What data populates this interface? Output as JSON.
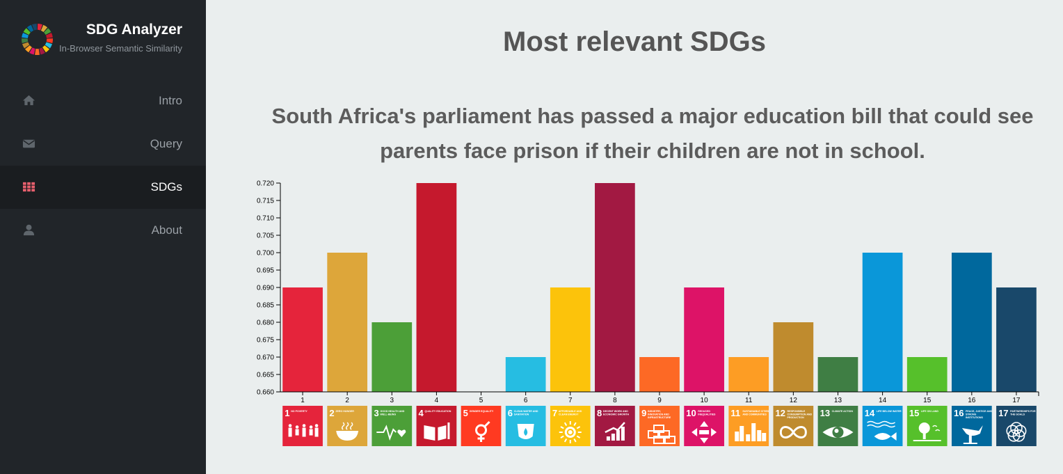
{
  "sidebar": {
    "title": "SDG Analyzer",
    "subtitle": "In-Browser Semantic Similarity",
    "items": [
      {
        "label": "Intro",
        "icon": "home-icon",
        "active": false
      },
      {
        "label": "Query",
        "icon": "envelope-icon",
        "active": false
      },
      {
        "label": "SDGs",
        "icon": "grid-icon",
        "active": true
      },
      {
        "label": "About",
        "icon": "user-icon",
        "active": false
      }
    ],
    "colors": {
      "background": "#212529",
      "active": "#1a1d20",
      "text": "#9aa0a6",
      "active_text": "#ffffff"
    }
  },
  "main": {
    "title": "Most relevant SDGs",
    "query_line1": "South Africa's parliament has passed a major education bill that could see",
    "query_line2": "parents face prison if their children are not in school."
  },
  "chart_data": {
    "type": "bar",
    "categories": [
      "1",
      "2",
      "3",
      "4",
      "5",
      "6",
      "7",
      "8",
      "9",
      "10",
      "11",
      "12",
      "13",
      "14",
      "15",
      "16",
      "17"
    ],
    "values": [
      0.69,
      0.7,
      0.68,
      0.72,
      0.66,
      0.67,
      0.69,
      0.72,
      0.67,
      0.69,
      0.67,
      0.68,
      0.67,
      0.7,
      0.67,
      0.7,
      0.69
    ],
    "ylim": [
      0.66,
      0.72
    ],
    "yticks": [
      "0.660",
      "0.665",
      "0.670",
      "0.675",
      "0.680",
      "0.685",
      "0.690",
      "0.695",
      "0.700",
      "0.705",
      "0.710",
      "0.715",
      "0.720"
    ],
    "grid": false,
    "colors": [
      "#e5243b",
      "#dda63a",
      "#4c9f38",
      "#c5192d",
      "#ff3a21",
      "#26bde2",
      "#fcc30b",
      "#a21942",
      "#fd6925",
      "#dd1367",
      "#fd9d24",
      "#bf8b2e",
      "#3f7e44",
      "#0a97d9",
      "#56c02b",
      "#00689d",
      "#19486a"
    ],
    "goal_tiles": [
      {
        "number": "1",
        "name": "NO POVERTY",
        "icon": "family-icon"
      },
      {
        "number": "2",
        "name": "ZERO HUNGER",
        "icon": "bowl-icon"
      },
      {
        "number": "3",
        "name": "GOOD HEALTH AND WELL-BEING",
        "icon": "heartbeat-icon"
      },
      {
        "number": "4",
        "name": "QUALITY EDUCATION",
        "icon": "book-icon"
      },
      {
        "number": "5",
        "name": "GENDER EQUALITY",
        "icon": "gender-icon"
      },
      {
        "number": "6",
        "name": "CLEAN WATER AND SANITATION",
        "icon": "water-drop-icon"
      },
      {
        "number": "7",
        "name": "AFFORDABLE AND CLEAN ENERGY",
        "icon": "sun-power-icon"
      },
      {
        "number": "8",
        "name": "DECENT WORK AND ECONOMIC GROWTH",
        "icon": "growth-chart-icon"
      },
      {
        "number": "9",
        "name": "INDUSTRY, INNOVATION AND INFRASTRUCTURE",
        "icon": "cubes-icon"
      },
      {
        "number": "10",
        "name": "REDUCED INEQUALITIES",
        "icon": "arrows-icon"
      },
      {
        "number": "11",
        "name": "SUSTAINABLE CITIES AND COMMUNITIES",
        "icon": "city-icon"
      },
      {
        "number": "12",
        "name": "RESPONSIBLE CONSUMPTION AND PRODUCTION",
        "icon": "infinity-icon"
      },
      {
        "number": "13",
        "name": "CLIMATE ACTION",
        "icon": "eye-globe-icon"
      },
      {
        "number": "14",
        "name": "LIFE BELOW WATER",
        "icon": "fish-icon"
      },
      {
        "number": "15",
        "name": "LIFE ON LAND",
        "icon": "tree-icon"
      },
      {
        "number": "16",
        "name": "PEACE, JUSTICE AND STRONG INSTITUTIONS",
        "icon": "dove-icon"
      },
      {
        "number": "17",
        "name": "PARTNERSHIPS FOR THE GOALS",
        "icon": "rings-icon"
      }
    ]
  }
}
